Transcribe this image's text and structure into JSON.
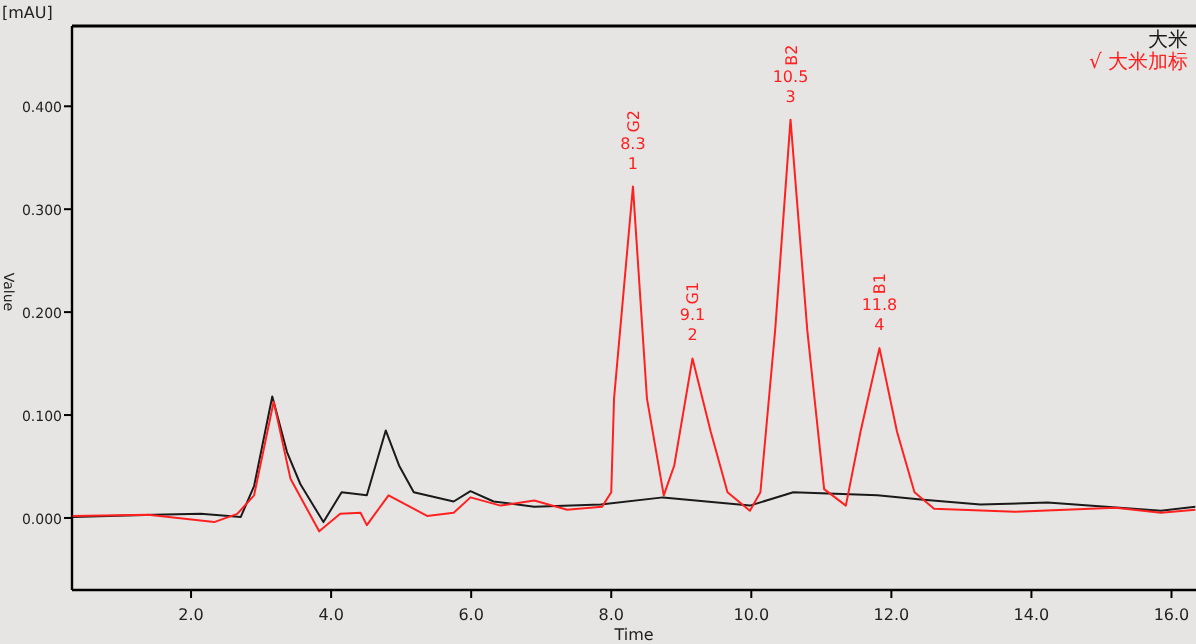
{
  "chart_data": {
    "type": "line",
    "xlabel": "Time",
    "ylabel": "Value",
    "legend": "top right",
    "grid": false,
    "xlim": [
      0.3,
      16.35
    ],
    "ylim": [
      -0.07,
      0.478
    ],
    "xticks": [
      {
        "value": 2,
        "label": "2.0"
      },
      {
        "value": 4,
        "label": "4.0"
      },
      {
        "value": 6,
        "label": "6.0"
      },
      {
        "value": 8,
        "label": "8.0"
      },
      {
        "value": 10,
        "label": "10.0"
      },
      {
        "value": 12,
        "label": "12.0"
      },
      {
        "value": 14,
        "label": "14.0"
      },
      {
        "value": 16,
        "label": "16.0"
      }
    ],
    "yticks": [
      {
        "value": 0,
        "label": "0.000"
      },
      {
        "value": 0.1,
        "label": "0.100"
      },
      {
        "value": 0.2,
        "label": "0.200"
      },
      {
        "value": 0.3,
        "label": "0.300"
      },
      {
        "value": 0.4,
        "label": "0.400"
      }
    ],
    "series": [
      {
        "name": "大米",
        "color": "#1a1a1a",
        "x": [
          0.31,
          1.47,
          2.14,
          2.71,
          2.9,
          3.16,
          3.37,
          3.56,
          3.89,
          4.15,
          4.51,
          4.78,
          4.97,
          5.18,
          5.75,
          5.99,
          6.32,
          6.9,
          7.85,
          8.74,
          9.98,
          10.6,
          11.8,
          12.42,
          13.27,
          14.23,
          15.85,
          16.34
        ],
        "values": [
          0.001,
          0.003,
          0.004,
          0.001,
          0.031,
          0.118,
          0.064,
          0.033,
          -0.004,
          0.025,
          0.022,
          0.085,
          0.051,
          0.025,
          0.016,
          0.026,
          0.016,
          0.011,
          0.013,
          0.02,
          0.012,
          0.025,
          0.022,
          0.018,
          0.013,
          0.015,
          0.007,
          0.011
        ]
      },
      {
        "name": "√ 大米加标",
        "color": "#ff2020",
        "x": [
          0.31,
          1.39,
          2.33,
          2.66,
          2.9,
          3.18,
          3.42,
          3.83,
          4.13,
          4.42,
          4.51,
          4.82,
          5.37,
          5.75,
          5.99,
          6.42,
          6.9,
          7.37,
          7.87,
          8.0,
          8.04,
          8.31,
          8.51,
          8.75,
          8.9,
          9.16,
          9.42,
          9.66,
          9.98,
          10.13,
          10.34,
          10.56,
          10.8,
          11.04,
          11.35,
          11.56,
          11.83,
          12.08,
          12.33,
          12.61,
          13.76,
          15.2,
          15.85,
          16.34
        ],
        "values": [
          0.002,
          0.003,
          -0.004,
          0.004,
          0.022,
          0.113,
          0.038,
          -0.013,
          0.004,
          0.005,
          -0.007,
          0.022,
          0.002,
          0.005,
          0.02,
          0.012,
          0.017,
          0.008,
          0.011,
          0.025,
          0.116,
          0.322,
          0.116,
          0.022,
          0.051,
          0.155,
          0.084,
          0.025,
          0.007,
          0.025,
          0.182,
          0.387,
          0.182,
          0.028,
          0.012,
          0.084,
          0.165,
          0.084,
          0.025,
          0.009,
          0.006,
          0.01,
          0.005,
          0.008
        ]
      }
    ],
    "annotations": [
      "[mAU]",
      {
        "text": "G2 8.3 1",
        "x": 8.31,
        "y": 0.322
      },
      {
        "text": "G1 9.1 2",
        "x": 9.16,
        "y": 0.155
      },
      {
        "text": "B2 10.5 3",
        "x": 10.56,
        "y": 0.387
      },
      {
        "text": "B1 11.8 4",
        "x": 11.83,
        "y": 0.165
      }
    ]
  }
}
